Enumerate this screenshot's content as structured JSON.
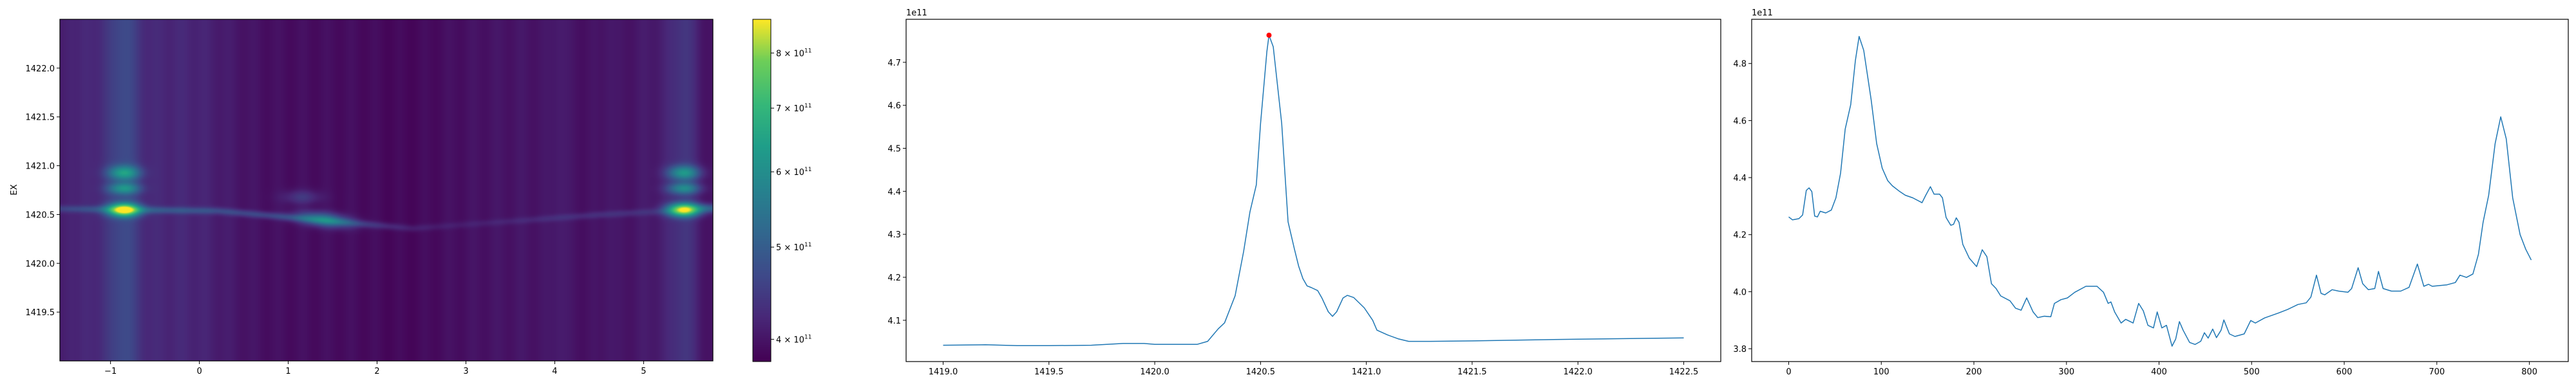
{
  "chart_data": [
    {
      "type": "heatmap",
      "ylabel": "EX",
      "xlabel": "",
      "xlim": [
        -1.57,
        5.78
      ],
      "ylim": [
        1419.0,
        1422.5
      ],
      "xticks": [
        -1,
        0,
        1,
        2,
        3,
        4,
        5
      ],
      "xtick_labels": [
        "−1",
        "0",
        "1",
        "2",
        "3",
        "4",
        "5"
      ],
      "yticks": [
        1419.5,
        1420.0,
        1420.5,
        1421.0,
        1421.5,
        1422.0
      ],
      "ytick_labels": [
        "1419.5",
        "1420.0",
        "1420.5",
        "1421.0",
        "1421.5",
        "1422.0"
      ],
      "colormap": "viridis",
      "colorbar": {
        "scale": "log",
        "range": [
          379000000000.0,
          868000000000.0
        ],
        "ticks": [
          {
            "value": 400000000000.0,
            "mantissa": "4",
            "base": "× 10",
            "exp": "11"
          },
          {
            "value": 500000000000.0,
            "mantissa": "5",
            "base": "× 10",
            "exp": "11"
          },
          {
            "value": 600000000000.0,
            "mantissa": "6",
            "base": "× 10",
            "exp": "11"
          },
          {
            "value": 700000000000.0,
            "mantissa": "7",
            "base": "× 10",
            "exp": "11"
          },
          {
            "value": 800000000000.0,
            "mantissa": "8",
            "base": "× 10",
            "exp": "11"
          }
        ]
      },
      "features": [
        {
          "x": -0.85,
          "y": 1420.55,
          "value": 850000000000.0
        },
        {
          "x": 5.45,
          "y": 1420.55,
          "value": 840000000000.0
        },
        {
          "x": 1.4,
          "y": 1420.45,
          "value": 600000000000.0
        }
      ],
      "grid": false
    },
    {
      "type": "line",
      "offset_label": "1e11",
      "xlim": [
        1418.825,
        1422.675
      ],
      "ylim": [
        4.004,
        4.8
      ],
      "xticks": [
        1419.0,
        1419.5,
        1420.0,
        1420.5,
        1421.0,
        1421.5,
        1422.0,
        1422.5
      ],
      "xtick_labels": [
        "1419.0",
        "1419.5",
        "1420.0",
        "1420.5",
        "1421.0",
        "1421.5",
        "1422.0",
        "1422.5"
      ],
      "yticks": [
        4.1,
        4.2,
        4.3,
        4.4,
        4.5,
        4.6,
        4.7
      ],
      "ytick_labels": [
        "4.1",
        "4.2",
        "4.3",
        "4.4",
        "4.5",
        "4.6",
        "4.7"
      ],
      "line_color": "#1f77b4",
      "marker_color": "#ff0000",
      "peak": {
        "x": 1420.54,
        "y": 4.763
      },
      "x": [
        1419.0,
        1419.2,
        1419.35,
        1419.5,
        1419.7,
        1419.85,
        1419.95,
        1420.0,
        1420.2,
        1420.25,
        1420.3,
        1420.33,
        1420.38,
        1420.42,
        1420.45,
        1420.48,
        1420.5,
        1420.53,
        1420.54,
        1420.56,
        1420.6,
        1420.63,
        1420.66,
        1420.68,
        1420.7,
        1420.72,
        1420.74,
        1420.77,
        1420.79,
        1420.82,
        1420.84,
        1420.86,
        1420.89,
        1420.91,
        1420.94,
        1420.99,
        1421.03,
        1421.05,
        1421.1,
        1421.15,
        1421.2,
        1421.3,
        1421.5,
        1422.0,
        1422.5
      ],
      "y": [
        4.042,
        4.043,
        4.041,
        4.041,
        4.042,
        4.046,
        4.046,
        4.044,
        4.044,
        4.051,
        4.08,
        4.094,
        4.157,
        4.26,
        4.352,
        4.415,
        4.558,
        4.725,
        4.763,
        4.736,
        4.558,
        4.329,
        4.266,
        4.226,
        4.197,
        4.18,
        4.176,
        4.169,
        4.152,
        4.12,
        4.109,
        4.12,
        4.152,
        4.158,
        4.153,
        4.129,
        4.1,
        4.077,
        4.066,
        4.057,
        4.051,
        4.051,
        4.052,
        4.056,
        4.059
      ],
      "grid": false
    },
    {
      "type": "line",
      "offset_label": "1e11",
      "xlim": [
        -40,
        842
      ],
      "ylim": [
        3.755,
        4.955
      ],
      "xticks": [
        0,
        100,
        200,
        300,
        400,
        500,
        600,
        700,
        800
      ],
      "xtick_labels": [
        "0",
        "100",
        "200",
        "300",
        "400",
        "500",
        "600",
        "700",
        "800"
      ],
      "yticks": [
        3.8,
        4.0,
        4.2,
        4.4,
        4.6,
        4.8
      ],
      "ytick_labels": [
        "3.8",
        "4.0",
        "4.2",
        "4.4",
        "4.6",
        "4.8"
      ],
      "line_color": "#1f77b4",
      "x": [
        0,
        4,
        11,
        15,
        19,
        22,
        25,
        28,
        31,
        34,
        40,
        46,
        51,
        56,
        61,
        67,
        72,
        76,
        81,
        89,
        95,
        101,
        107,
        112,
        120,
        126,
        134,
        144,
        148,
        153,
        157,
        163,
        166,
        170,
        175,
        178,
        181,
        184,
        188,
        195,
        200,
        203,
        209,
        214,
        219,
        224,
        229,
        239,
        245,
        251,
        257,
        264,
        269,
        276,
        283,
        287,
        294,
        301,
        309,
        321,
        333,
        340,
        345,
        348,
        352,
        359,
        364,
        372,
        378,
        383,
        388,
        394,
        398,
        403,
        408,
        414,
        418,
        422,
        426,
        433,
        439,
        445,
        449,
        453,
        458,
        462,
        467,
        470,
        476,
        482,
        492,
        499,
        504,
        514,
        529,
        539,
        550,
        559,
        564,
        570,
        575,
        579,
        587,
        594,
        604,
        608,
        615,
        620,
        626,
        633,
        637,
        642,
        651,
        661,
        670,
        679,
        686,
        691,
        695,
        711,
        720,
        725,
        732,
        739,
        745,
        750,
        756,
        763,
        769,
        775,
        782,
        790,
        796,
        802
      ],
      "y": [
        4.262,
        4.252,
        4.256,
        4.269,
        4.355,
        4.364,
        4.351,
        4.265,
        4.262,
        4.282,
        4.276,
        4.286,
        4.329,
        4.415,
        4.57,
        4.656,
        4.81,
        4.895,
        4.846,
        4.673,
        4.519,
        4.433,
        4.389,
        4.371,
        4.351,
        4.338,
        4.329,
        4.312,
        4.338,
        4.368,
        4.342,
        4.342,
        4.329,
        4.26,
        4.233,
        4.236,
        4.259,
        4.243,
        4.166,
        4.118,
        4.099,
        4.088,
        4.147,
        4.123,
        4.028,
        4.011,
        3.985,
        3.968,
        3.942,
        3.935,
        3.978,
        3.929,
        3.909,
        3.914,
        3.912,
        3.959,
        3.972,
        3.978,
        3.998,
        4.019,
        4.019,
        3.998,
        3.959,
        3.964,
        3.929,
        3.89,
        3.903,
        3.89,
        3.959,
        3.933,
        3.882,
        3.873,
        3.929,
        3.873,
        3.882,
        3.809,
        3.834,
        3.895,
        3.865,
        3.822,
        3.815,
        3.826,
        3.856,
        3.837,
        3.869,
        3.839,
        3.865,
        3.901,
        3.852,
        3.843,
        3.852,
        3.899,
        3.89,
        3.908,
        3.925,
        3.938,
        3.955,
        3.961,
        3.981,
        4.058,
        3.994,
        3.989,
        4.007,
        4.002,
        3.998,
        4.011,
        4.084,
        4.028,
        4.007,
        4.011,
        4.071,
        4.011,
        4.002,
        4.002,
        4.015,
        4.097,
        4.019,
        4.026,
        4.019,
        4.024,
        4.032,
        4.058,
        4.05,
        4.062,
        4.131,
        4.243,
        4.338,
        4.519,
        4.613,
        4.536,
        4.329,
        4.2,
        4.149,
        4.111
      ],
      "grid": false
    }
  ]
}
